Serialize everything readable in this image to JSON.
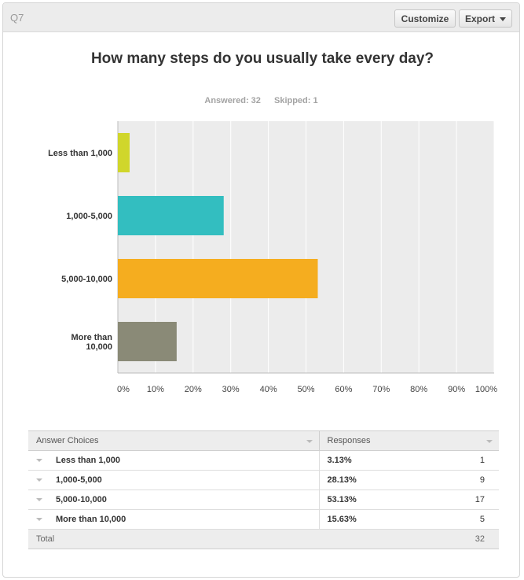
{
  "header": {
    "question_label": "Q7",
    "customize_label": "Customize",
    "export_label": "Export"
  },
  "stats": {
    "answered": "Answered: 32",
    "skipped": "Skipped: 1"
  },
  "chart_data": {
    "type": "bar",
    "orientation": "horizontal",
    "title": "How many steps do you usually take every day?",
    "categories": [
      "Less than 1,000",
      "1,000-5,000",
      "5,000-10,000",
      "More than 10,000"
    ],
    "category_lines": [
      [
        "Less than 1,000"
      ],
      [
        "1,000-5,000"
      ],
      [
        "5,000-10,000"
      ],
      [
        "More than",
        "10,000"
      ]
    ],
    "values": [
      3.13,
      28.13,
      53.13,
      15.63
    ],
    "colors": [
      "#d0d62b",
      "#33bec0",
      "#f5ad1f",
      "#8a8a77"
    ],
    "xlim": [
      0,
      100
    ],
    "xticks": [
      "0%",
      "10%",
      "20%",
      "30%",
      "40%",
      "50%",
      "60%",
      "70%",
      "80%",
      "90%",
      "100%"
    ],
    "grid": true,
    "xlabel": "",
    "ylabel": ""
  },
  "table": {
    "headers": [
      "Answer Choices",
      "Responses"
    ],
    "rows": [
      {
        "choice": "Less than 1,000",
        "percent": "3.13%",
        "count": "1"
      },
      {
        "choice": "1,000-5,000",
        "percent": "28.13%",
        "count": "9"
      },
      {
        "choice": "5,000-10,000",
        "percent": "53.13%",
        "count": "17"
      },
      {
        "choice": "More than 10,000",
        "percent": "15.63%",
        "count": "5"
      }
    ],
    "total_label": "Total",
    "total_count": "32"
  }
}
